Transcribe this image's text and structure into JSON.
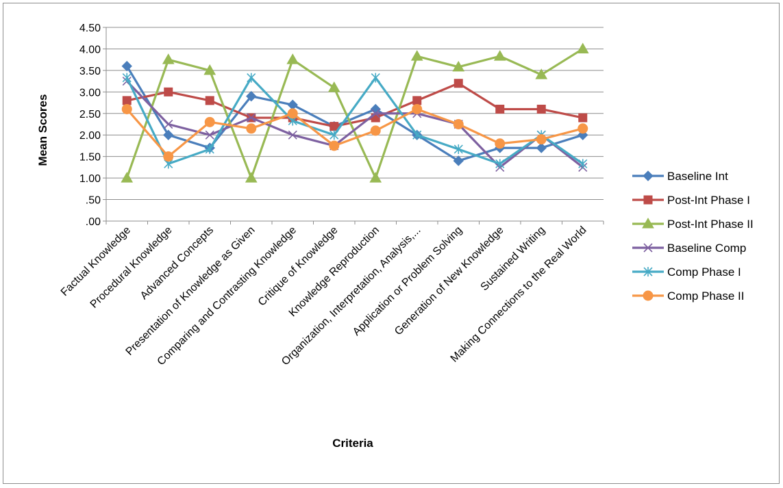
{
  "chart_data": {
    "type": "line",
    "title": "",
    "xlabel": "Criteria",
    "ylabel": "Mean Scores",
    "ylim": [
      0,
      4.5
    ],
    "yticks": [
      ".00",
      ".50",
      "1.00",
      "1.50",
      "2.00",
      "2.50",
      "3.00",
      "3.50",
      "4.00",
      "4.50"
    ],
    "grid": true,
    "legend_position": "right",
    "categories": [
      "Factual Knowledge",
      "Procedural Knowledge",
      "Advanced Concepts",
      "Presentation of Knowledge as Given",
      "Comparing and Contrasting Knowledge",
      "Critique of Knowledge",
      "Knowledge Reproduction",
      "Organization, Interpretation, Analysis,...",
      "Application or Problem Solving",
      "Generation of New Knowledge",
      "Sustained Writing",
      "Making Connections to the Real World"
    ],
    "series": [
      {
        "name": "Baseline Int",
        "color": "#4a7ebb",
        "marker": "diamond",
        "values": [
          3.6,
          2.0,
          1.7,
          2.9,
          2.7,
          2.2,
          2.6,
          2.0,
          1.4,
          1.7,
          1.7,
          2.0
        ]
      },
      {
        "name": "Post-Int Phase I",
        "color": "#be4b48",
        "marker": "square",
        "values": [
          2.8,
          3.0,
          2.8,
          2.4,
          2.4,
          2.2,
          2.4,
          2.8,
          3.2,
          2.6,
          2.6,
          2.4
        ]
      },
      {
        "name": "Post-Int Phase II",
        "color": "#98b954",
        "marker": "triangle",
        "values": [
          1.0,
          3.75,
          3.5,
          1.0,
          3.75,
          3.1,
          1.0,
          3.83,
          3.58,
          3.83,
          3.4,
          4.0
        ]
      },
      {
        "name": "Baseline Comp",
        "color": "#7d60a0",
        "marker": "x",
        "values": [
          3.25,
          2.25,
          2.0,
          2.4,
          2.0,
          1.75,
          2.5,
          2.5,
          2.25,
          1.25,
          2.0,
          1.25
        ]
      },
      {
        "name": "Comp Phase I",
        "color": "#46aac5",
        "marker": "star",
        "values": [
          3.33,
          1.33,
          1.67,
          3.33,
          2.33,
          2.0,
          3.33,
          2.0,
          1.67,
          1.33,
          2.0,
          1.33
        ]
      },
      {
        "name": "Comp Phase II",
        "color": "#f79646",
        "marker": "circle",
        "values": [
          2.6,
          1.5,
          2.3,
          2.15,
          2.5,
          1.75,
          2.1,
          2.6,
          2.25,
          1.8,
          1.9,
          2.15
        ]
      }
    ]
  }
}
